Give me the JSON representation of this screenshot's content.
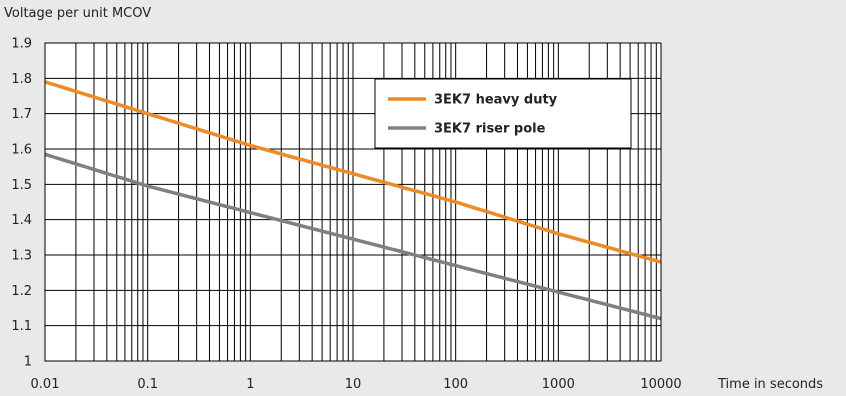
{
  "chart_data": {
    "type": "line",
    "ylabel": "Voltage per unit MCOV",
    "xlabel": "Time in seconds",
    "x_scale": "log",
    "xlim": [
      0.01,
      10000
    ],
    "ylim": [
      1.0,
      1.9
    ],
    "x_ticks": [
      0.01,
      0.1,
      1,
      10,
      100,
      1000,
      10000
    ],
    "x_tick_labels": [
      "0.01",
      "0.1",
      "1",
      "10",
      "100",
      "1000",
      "10000"
    ],
    "y_ticks": [
      1.0,
      1.1,
      1.2,
      1.3,
      1.4,
      1.5,
      1.6,
      1.7,
      1.8,
      1.9
    ],
    "y_tick_labels": [
      "1",
      "1.1",
      "1.2",
      "1.3",
      "1.4",
      "1.5",
      "1.6",
      "1.7",
      "1.8",
      "1.9"
    ],
    "grid": true,
    "legend_position": "top-right",
    "series": [
      {
        "name": "3EK7 heavy duty",
        "color": "#f08a24",
        "x": [
          0.01,
          0.1,
          1,
          10,
          100,
          1000,
          10000
        ],
        "y": [
          1.79,
          1.7,
          1.61,
          1.53,
          1.45,
          1.36,
          1.28
        ]
      },
      {
        "name": "3EK7 riser pole",
        "color": "#808080",
        "x": [
          0.01,
          0.1,
          1,
          10,
          100,
          1000,
          10000
        ],
        "y": [
          1.585,
          1.495,
          1.42,
          1.345,
          1.27,
          1.195,
          1.12
        ]
      }
    ]
  }
}
